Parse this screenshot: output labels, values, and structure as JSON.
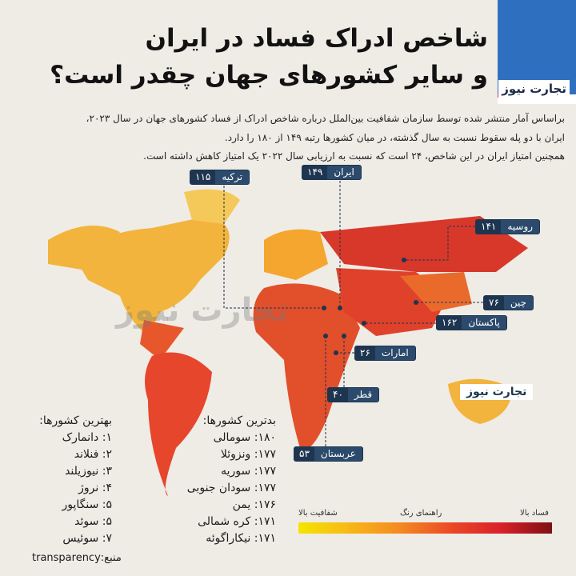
{
  "title": {
    "line1": "شاخص ادراک فساد در ایران",
    "line2": "و سایر  کشورهای جهان چقدر است؟"
  },
  "brand": {
    "name": "تجارت نیوز"
  },
  "intro": [
    "براساس آمار منتشر شده توسط سازمان شفافیت بین‌الملل درباره شاخص ادراک از فساد کشورهای جهان در سال ۲۰۲۳،",
    "ایران با دو پله سقوط نسبت به سال گذشته، در میان کشورها رتبه ۱۴۹ از ۱۸۰ را دارد.",
    "همچنین امتیاز ایران در این شاخص، ۲۴ است که نسبت به ارزیابی سال ۲۰۲۲ یک امتیاز کاهش داشته است."
  ],
  "map_labels": {
    "turkey": {
      "name": "ترکیه",
      "rank": "۱۱۵"
    },
    "iran": {
      "name": "ایران",
      "rank": "۱۴۹"
    },
    "russia": {
      "name": "روسیه",
      "rank": "۱۴۱"
    },
    "china": {
      "name": "چین",
      "rank": "۷۶"
    },
    "pakistan": {
      "name": "پاکستان",
      "rank": "۱۶۲"
    },
    "uae": {
      "name": "امارات",
      "rank": "۲۶"
    },
    "qatar": {
      "name": "قطر",
      "rank": "۴۰"
    },
    "saudi": {
      "name": "عربستان",
      "rank": "۵۳"
    }
  },
  "best": {
    "heading": "بهترین کشورها:",
    "items": [
      "۱: دانمارک",
      "۲: فنلاند",
      "۳: نیوزیلند",
      "۴: نروژ",
      "۵: سنگاپور",
      "۵: سوئد",
      "۷: سوئیس"
    ]
  },
  "worst": {
    "heading": "بدترین کشورها:",
    "items": [
      "۱۸۰: سومالی",
      "۱۷۷: ونزوئلا",
      "۱۷۷: سوریه",
      "۱۷۷: سودان جنوبی",
      "۱۷۶: یمن",
      "۱۷۱: کره شمالی",
      "۱۷۱: نیکاراگوئه"
    ]
  },
  "legend": {
    "title": "راهنمای رنگ",
    "low": "شفافیت بالا",
    "high": "فساد بالا",
    "colors": [
      "#f6e400",
      "#f48a22",
      "#d9202a",
      "#7d1114"
    ]
  },
  "source": "منبع:transparency"
}
